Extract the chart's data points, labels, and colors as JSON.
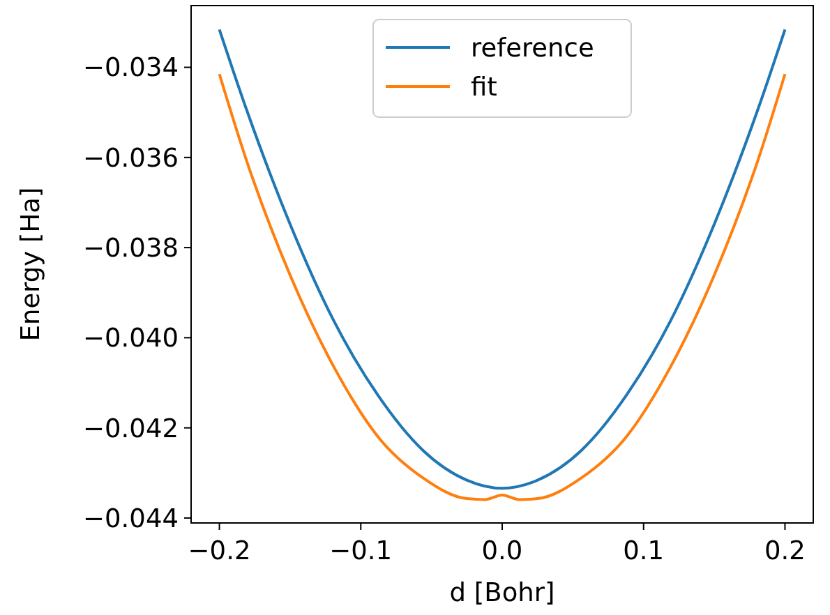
{
  "chart_data": {
    "type": "line",
    "xlabel": "d [Bohr]",
    "ylabel": "Energy [Ha]",
    "xlim": [
      -0.22,
      0.22
    ],
    "xticks": [
      {
        "value": -0.2,
        "label": "−0.2"
      },
      {
        "value": -0.1,
        "label": "−0.1"
      },
      {
        "value": 0,
        "label": "0.0"
      },
      0.1,
      0.2
    ],
    "ylim": [
      -0.04411,
      -0.03263
    ],
    "yticks": [
      {
        "value": -0.044,
        "label": "−0.044"
      },
      {
        "value": -0.042,
        "label": "−0.042"
      },
      {
        "value": -0.04,
        "label": "−0.040"
      },
      {
        "value": -0.038,
        "label": "−0.038"
      },
      {
        "value": -0.036,
        "label": "−0.036"
      },
      {
        "value": -0.034,
        "label": "−0.034"
      }
    ],
    "grid": false,
    "legend": "top",
    "line_style": "solid",
    "marker": "none",
    "series": [
      {
        "name": "reference",
        "color": "#1f77b4",
        "x": [
          -0.2,
          -0.181,
          -0.15,
          -0.119,
          -0.088,
          -0.056,
          -0.025,
          0,
          0.025,
          0.056,
          0.088,
          0.119,
          0.15,
          0.181,
          0.2
        ],
        "values": [
          -0.03316,
          -0.03492,
          -0.03748,
          -0.03963,
          -0.04127,
          -0.0425,
          -0.04316,
          -0.04334,
          -0.04316,
          -0.0425,
          -0.04127,
          -0.03963,
          -0.03748,
          -0.03492,
          -0.03316
        ]
      },
      {
        "name": "fit",
        "color": "#ff7f0e",
        "x": [
          -0.2,
          -0.181,
          -0.15,
          -0.119,
          -0.088,
          -0.056,
          -0.025,
          -0.012,
          0,
          0.012,
          0.025,
          0.056,
          0.088,
          0.119,
          0.15,
          0.181,
          0.2
        ],
        "values": [
          -0.03415,
          -0.03605,
          -0.03861,
          -0.04065,
          -0.04219,
          -0.04311,
          -0.04357,
          -0.04359,
          -0.04349,
          -0.04359,
          -0.04357,
          -0.04311,
          -0.04219,
          -0.04065,
          -0.03861,
          -0.03605,
          -0.03415
        ]
      }
    ]
  }
}
